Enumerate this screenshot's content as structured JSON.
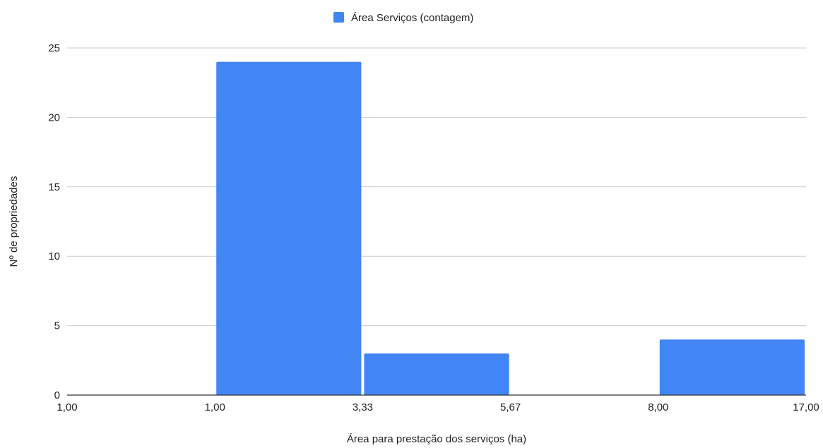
{
  "chart_data": {
    "type": "bar",
    "title": "",
    "legend": {
      "position": "top",
      "entries": [
        "Área Serviços (contagem)"
      ]
    },
    "series": [
      {
        "name": "Área Serviços (contagem)",
        "color": "#4285f4",
        "bins": [
          {
            "start_label": "1,00",
            "end_label": "1,00",
            "value": 0
          },
          {
            "start_label": "1,00",
            "end_label": "3,33",
            "value": 24
          },
          {
            "start_label": "3,33",
            "end_label": "5,67",
            "value": 3
          },
          {
            "start_label": "5,67",
            "end_label": "8,00",
            "value": 0
          },
          {
            "start_label": "8,00",
            "end_label": "17,00",
            "value": 4
          }
        ]
      }
    ],
    "x_tick_labels": [
      "1,00",
      "1,00",
      "3,33",
      "5,67",
      "8,00",
      "17,00"
    ],
    "y_ticks": [
      "0",
      "5",
      "10",
      "15",
      "20",
      "25"
    ],
    "ylim": [
      0,
      25
    ],
    "xlabel": "Área para prestação dos serviços (ha)",
    "ylabel": "Nº de propriedades",
    "grid": true
  }
}
